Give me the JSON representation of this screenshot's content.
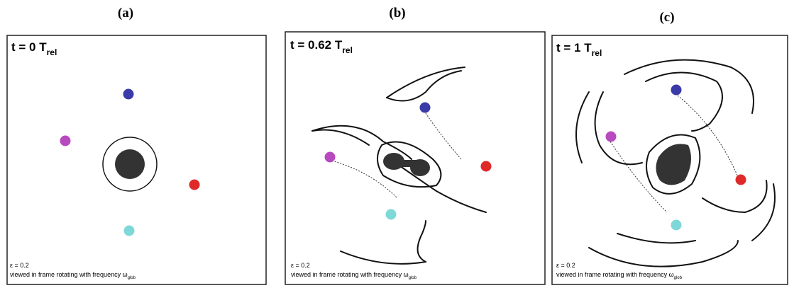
{
  "panels": [
    {
      "label": "(a)",
      "time": "t = 0 T",
      "time_sub": "rel",
      "epsilon": "ε = 0.2",
      "caption": "viewed in frame rotating with frequency ω",
      "caption_sub": "glob"
    },
    {
      "label": "(b)",
      "time": "t = 0.62 T",
      "time_sub": "rel",
      "epsilon": "ε = 0.2",
      "caption": "viewed in frame rotating with frequency ω",
      "caption_sub": "glob"
    },
    {
      "label": "(c)",
      "time": "t = 1 T",
      "time_sub": "rel",
      "epsilon": "ε = 0.2",
      "caption": "viewed in frame rotating with frequency ω",
      "caption_sub": "glob"
    }
  ]
}
